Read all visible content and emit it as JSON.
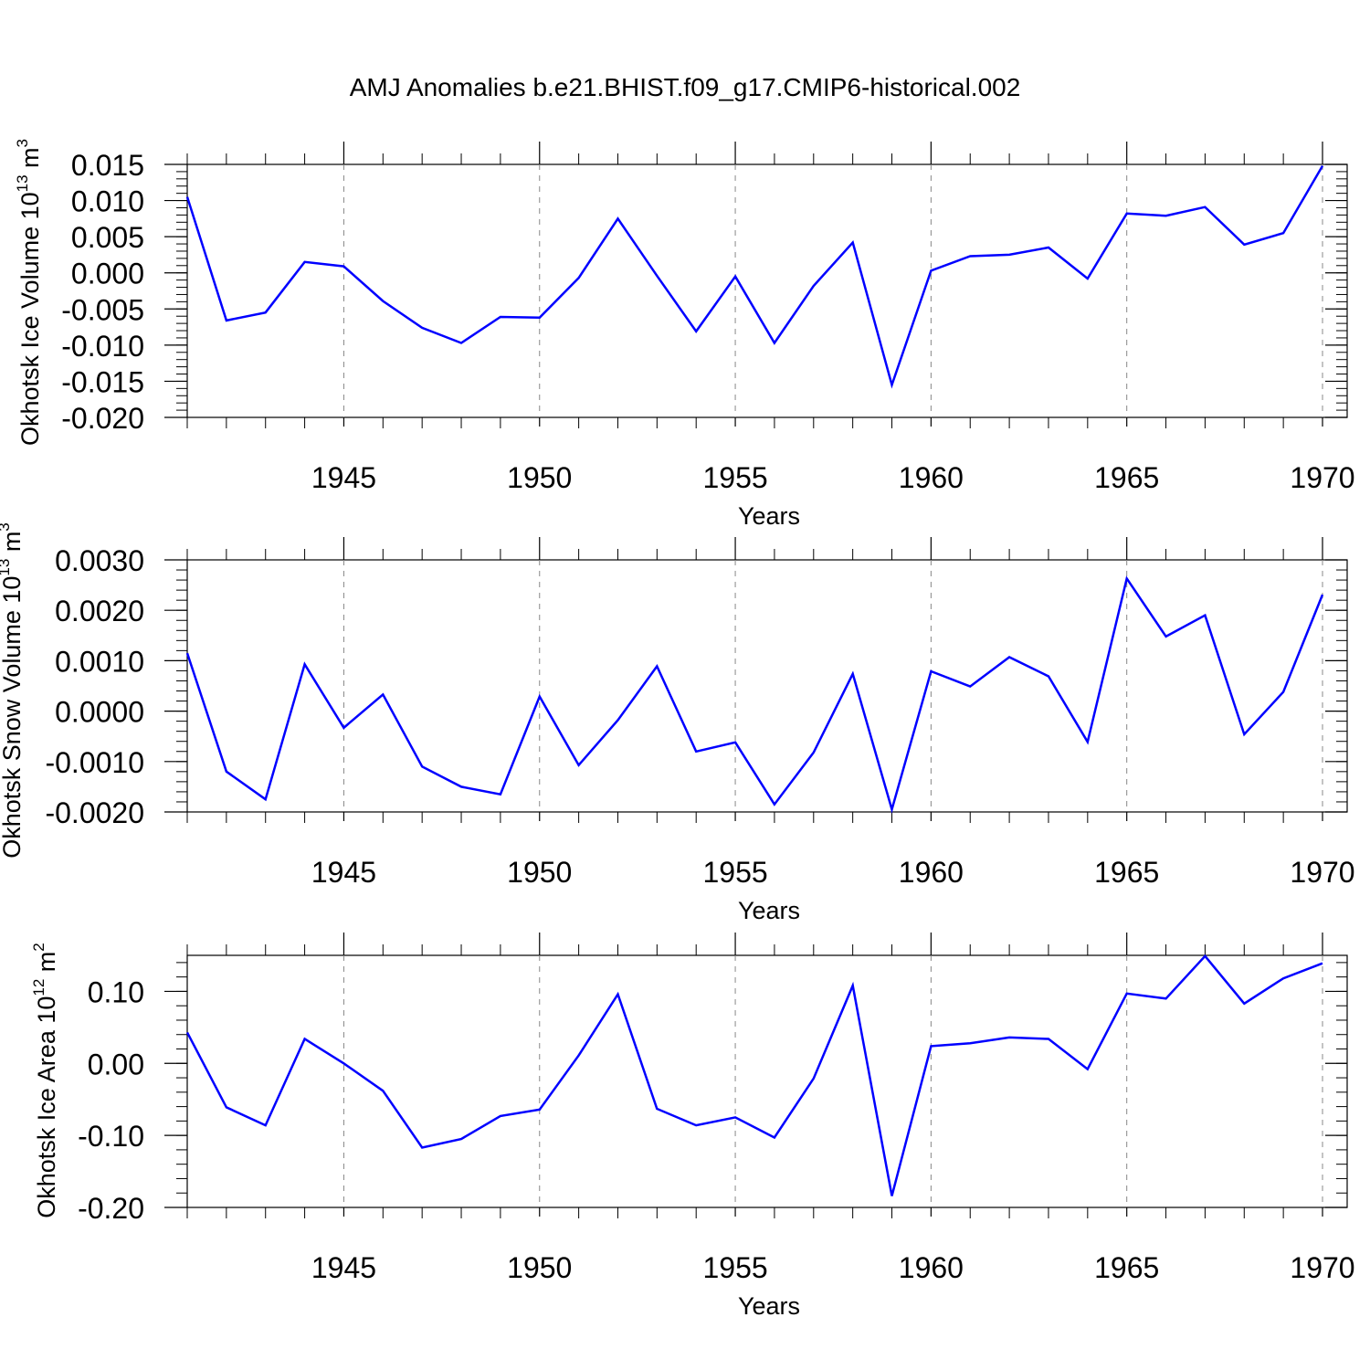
{
  "title": "AMJ Anomalies b.e21.BHIST.f09_g17.CMIP6-historical.002",
  "line_color": "#0000ff",
  "chart_data": [
    {
      "type": "line",
      "ylabel": "Okhotsk Ice Volume 10",
      "ylabel_exp": "13",
      "ylabel_unit": " m",
      "ylabel_unit_exp": "3",
      "xlabel": "Years",
      "xlim": [
        1941,
        1970
      ],
      "ylim": [
        -0.02,
        0.015
      ],
      "yticks": [
        0.015,
        0.01,
        0.005,
        0.0,
        -0.005,
        -0.01,
        -0.015,
        -0.02
      ],
      "ytick_labels": [
        "0.015",
        "0.010",
        "0.005",
        "0.000",
        "-0.005",
        "-0.010",
        "-0.015",
        "-0.020"
      ],
      "xticks": [
        1945,
        1950,
        1955,
        1960,
        1965,
        1970
      ],
      "xtick_labels": [
        "1945",
        "1950",
        "1955",
        "1960",
        "1965",
        "1970"
      ],
      "x": [
        1941,
        1942,
        1943,
        1944,
        1945,
        1946,
        1947,
        1948,
        1949,
        1950,
        1951,
        1952,
        1953,
        1954,
        1955,
        1956,
        1957,
        1958,
        1959,
        1960,
        1961,
        1962,
        1963,
        1964,
        1965,
        1966,
        1967,
        1968,
        1969,
        1970
      ],
      "values": [
        0.0105,
        -0.0066,
        -0.0055,
        0.0015,
        0.0009,
        -0.0039,
        -0.0076,
        -0.0097,
        -0.0061,
        -0.0062,
        -0.0007,
        0.0075,
        -0.0004,
        -0.0081,
        -0.0005,
        -0.0097,
        -0.0018,
        0.0042,
        -0.0155,
        0.0003,
        0.0023,
        0.0025,
        0.0035,
        -0.0008,
        0.0082,
        0.0079,
        0.0091,
        0.0039,
        0.0055,
        0.0148
      ],
      "grid": "dashed vertical lines at major x ticks"
    },
    {
      "type": "line",
      "ylabel": "Okhotsk Snow Volume 10",
      "ylabel_exp": "13",
      "ylabel_unit": " m",
      "ylabel_unit_exp": "3",
      "xlabel": "Years",
      "xlim": [
        1941,
        1970
      ],
      "ylim": [
        -0.002,
        0.003
      ],
      "yticks": [
        0.003,
        0.002,
        0.001,
        0.0,
        -0.001,
        -0.002
      ],
      "ytick_labels": [
        "0.0030",
        "0.0020",
        "0.0010",
        "0.0000",
        "-0.0010",
        "-0.0020"
      ],
      "xticks": [
        1945,
        1950,
        1955,
        1960,
        1965,
        1970
      ],
      "xtick_labels": [
        "1945",
        "1950",
        "1955",
        "1960",
        "1965",
        "1970"
      ],
      "x": [
        1941,
        1942,
        1943,
        1944,
        1945,
        1946,
        1947,
        1948,
        1949,
        1950,
        1951,
        1952,
        1953,
        1954,
        1955,
        1956,
        1957,
        1958,
        1959,
        1960,
        1961,
        1962,
        1963,
        1964,
        1965,
        1966,
        1967,
        1968,
        1969,
        1970
      ],
      "values": [
        0.00115,
        -0.0012,
        -0.00175,
        0.00093,
        -0.00033,
        0.00033,
        -0.0011,
        -0.0015,
        -0.00165,
        0.00029,
        -0.00107,
        -0.00018,
        0.00089,
        -0.0008,
        -0.00062,
        -0.00185,
        -0.00082,
        0.00074,
        -0.00195,
        0.00079,
        0.00049,
        0.00107,
        0.00069,
        -0.00061,
        0.00263,
        0.00148,
        0.0019,
        -0.00046,
        0.00038,
        0.00231
      ],
      "grid": "dashed vertical lines at major x ticks"
    },
    {
      "type": "line",
      "ylabel": "Okhotsk Ice Area 10",
      "ylabel_exp": "12",
      "ylabel_unit": " m",
      "ylabel_unit_exp": "2",
      "xlabel": "Years",
      "xlim": [
        1941,
        1970
      ],
      "ylim": [
        -0.2,
        0.15
      ],
      "yticks": [
        0.1,
        0.0,
        -0.1,
        -0.2
      ],
      "ytick_labels": [
        "0.10",
        "0.00",
        "-0.10",
        "-0.20"
      ],
      "xticks": [
        1945,
        1950,
        1955,
        1960,
        1965,
        1970
      ],
      "xtick_labels": [
        "1945",
        "1950",
        "1955",
        "1960",
        "1965",
        "1970"
      ],
      "x": [
        1941,
        1942,
        1943,
        1944,
        1945,
        1946,
        1947,
        1948,
        1949,
        1950,
        1951,
        1952,
        1953,
        1954,
        1955,
        1956,
        1957,
        1958,
        1959,
        1960,
        1961,
        1962,
        1963,
        1964,
        1965,
        1966,
        1967,
        1968,
        1969,
        1970
      ],
      "values": [
        0.043,
        -0.061,
        -0.086,
        0.034,
        0.0,
        -0.038,
        -0.117,
        -0.105,
        -0.073,
        -0.064,
        0.011,
        0.096,
        -0.063,
        -0.086,
        -0.075,
        -0.103,
        -0.021,
        0.108,
        -0.184,
        0.024,
        0.028,
        0.036,
        0.034,
        -0.008,
        0.097,
        0.09,
        0.149,
        0.083,
        0.118,
        0.139
      ],
      "grid": "dashed vertical lines at major x ticks"
    }
  ]
}
